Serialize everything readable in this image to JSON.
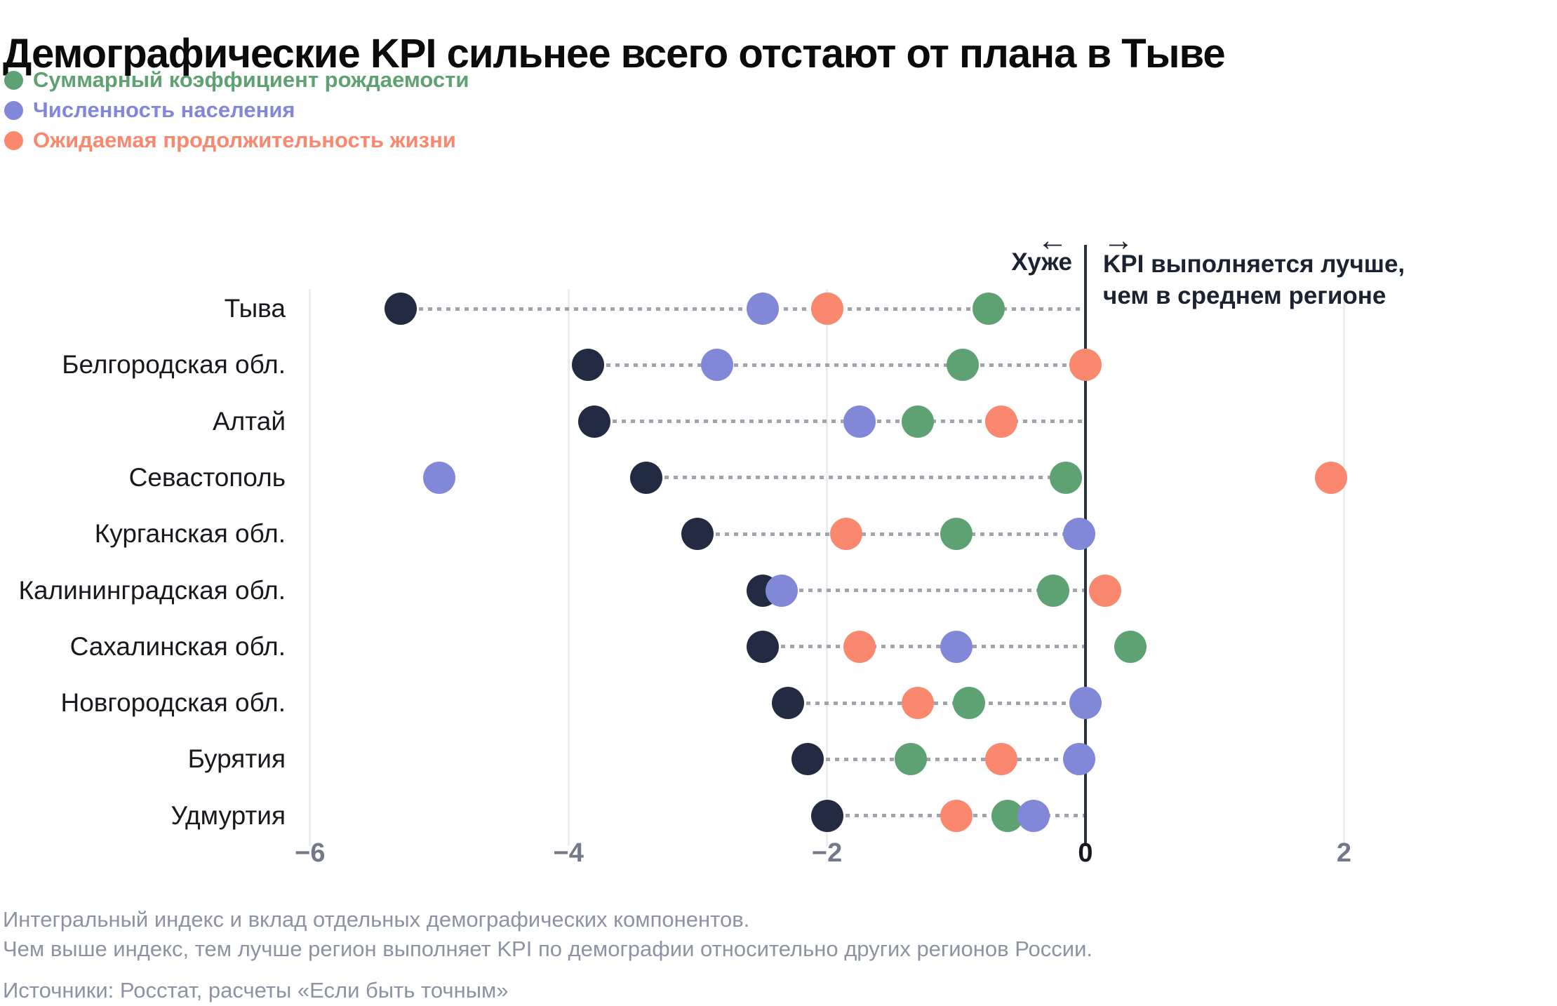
{
  "title": "Демографические KPI сильнее всего отстают от плана в Тыве",
  "legend": {
    "items": [
      {
        "label": "Суммарный коэффициент рождаемости",
        "color_key": "green"
      },
      {
        "label": "Численность населения",
        "color_key": "purple"
      },
      {
        "label": "Ожидаемая продолжительность жизни",
        "color_key": "salmon"
      }
    ]
  },
  "annotations": {
    "arrow_left": "←",
    "arrow_right": "→",
    "worse": "Хуже",
    "better_line1": "KPI выполняется лучше,",
    "better_line2": "чем в среднем регионе"
  },
  "footnote": {
    "line1": "Интегральный индекс и вклад отдельных демографических компонентов.",
    "line2": "Чем выше индекс, тем лучше регион выполняет KPI по демографии относительно других регионов России.",
    "source": "Источники: Росстат, расчеты «Если быть точным»"
  },
  "colors": {
    "navy": "#222b42",
    "green": "#5ea273",
    "purple": "#8188d8",
    "salmon": "#f9886f",
    "grid": "#ecedef",
    "zero_line": "#283041",
    "leader": "#9fa4ae",
    "tick_gray": "#71798a",
    "tick_zero": "#16181d",
    "footnote_gray": "#8c93a2"
  },
  "chart_data": {
    "type": "scatter",
    "orientation": "horizontal-dot-plot",
    "categories": [
      "Тыва",
      "Белгородская обл.",
      "Алтай",
      "Севастополь",
      "Курганская обл.",
      "Калининградская обл.",
      "Сахалинская обл.",
      "Новгородская обл.",
      "Бурятия",
      "Удмуртия"
    ],
    "series": [
      {
        "name": "Интегральный индекс",
        "color_key": "navy",
        "in_legend": false,
        "values": [
          -5.3,
          -3.85,
          -3.8,
          -3.4,
          -3.0,
          -2.5,
          -2.5,
          -2.3,
          -2.15,
          -2.0
        ]
      },
      {
        "name": "Суммарный коэффициент рождаемости",
        "color_key": "green",
        "in_legend": true,
        "values": [
          -0.75,
          -0.95,
          -1.3,
          -0.15,
          -1.0,
          -0.25,
          0.35,
          -0.9,
          -1.35,
          -0.6
        ]
      },
      {
        "name": "Численность населения",
        "color_key": "purple",
        "in_legend": true,
        "values": [
          -2.5,
          -2.85,
          -1.75,
          -5.0,
          -0.05,
          -2.35,
          -1.0,
          0.0,
          -0.05,
          -0.4
        ]
      },
      {
        "name": "Ожидаемая продолжительность жизни",
        "color_key": "salmon",
        "in_legend": true,
        "values": [
          -2.0,
          0.0,
          -0.65,
          1.9,
          -1.85,
          0.15,
          -1.75,
          -1.3,
          -0.65,
          -1.0
        ]
      }
    ],
    "xlim": [
      -6.9,
      2.6
    ],
    "xticks": [
      -6,
      -4,
      -2,
      0,
      2
    ],
    "xtick_labels": [
      "−6",
      "−4",
      "−2",
      "0",
      "2"
    ],
    "grid": "vertical-at-ticks",
    "leader_lines": "dotted from Интегральный индекс dot to zero line",
    "legend_position": "top-left"
  }
}
